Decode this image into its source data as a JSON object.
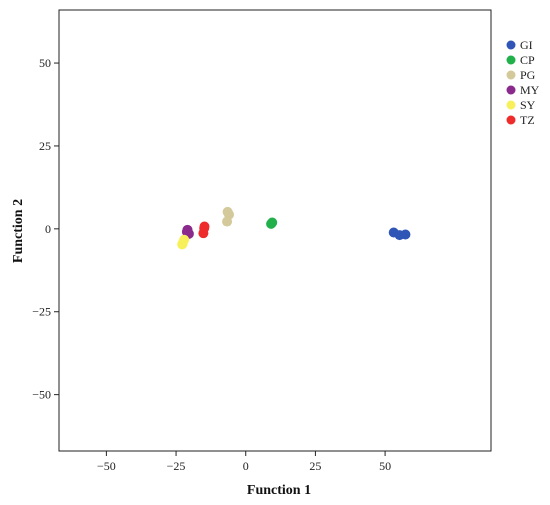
{
  "chart_data": {
    "type": "scatter",
    "title": "",
    "xlabel": "Function 1",
    "ylabel": "Function 2",
    "xlim": [
      -67,
      88
    ],
    "ylim": [
      -67,
      66
    ],
    "xticks": [
      -50,
      -25,
      0,
      25,
      50
    ],
    "yticks": [
      -50,
      -25,
      0,
      25,
      50
    ],
    "xtick_labels": [
      "−50",
      "−25",
      "0",
      "25",
      "50"
    ],
    "ytick_labels": [
      "−50",
      "−25",
      "0",
      "25",
      "50"
    ],
    "grid": false,
    "legend_position": "top-right",
    "series": [
      {
        "name": "GI",
        "color": "#2f56b6",
        "points": [
          [
            53.1,
            -1.1
          ],
          [
            55.2,
            -1.9
          ],
          [
            57.3,
            -1.7
          ]
        ]
      },
      {
        "name": "CP",
        "color": "#22b04a",
        "points": [
          [
            9.1,
            1.5
          ],
          [
            9.5,
            1.9
          ]
        ]
      },
      {
        "name": "PG",
        "color": "#d3c99a",
        "points": [
          [
            -6.5,
            5.1
          ],
          [
            -6.0,
            4.3
          ],
          [
            -6.7,
            2.2
          ]
        ]
      },
      {
        "name": "MY",
        "color": "#8a2a8c",
        "points": [
          [
            -20.9,
            -0.3
          ],
          [
            -20.4,
            -1.5
          ],
          [
            -21.1,
            -0.9
          ]
        ]
      },
      {
        "name": "SY",
        "color": "#f7f05a",
        "points": [
          [
            -22.6,
            -4.3
          ],
          [
            -22.1,
            -3.3
          ],
          [
            -22.8,
            -4.7
          ]
        ]
      },
      {
        "name": "TZ",
        "color": "#ee2c2c",
        "points": [
          [
            -14.8,
            0.7
          ],
          [
            -15.2,
            -1.3
          ],
          [
            -14.9,
            0.2
          ]
        ]
      }
    ]
  }
}
